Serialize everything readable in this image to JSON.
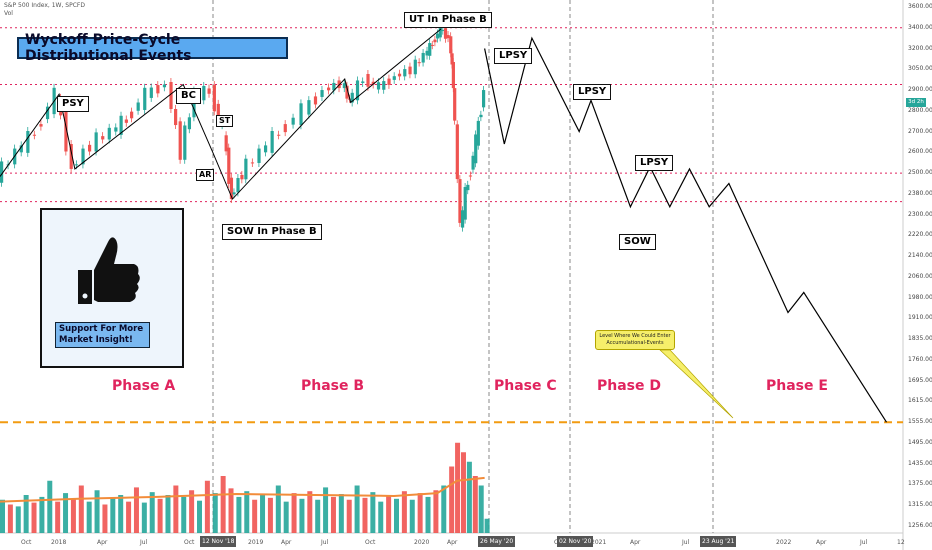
{
  "header": {
    "line1": "S&P 500 Index, 1W, SPCFD",
    "line2": "Vol"
  },
  "chart_data": {
    "type": "candlestick",
    "title": "Wyckoff Price-Cycle Distributional Events",
    "y_axis_ticks": [
      "3600.00",
      "3400.00",
      "3200.00",
      "3050.00",
      "2900.00",
      "2800.00",
      "2700.00",
      "2600.00",
      "2500.00",
      "2380.00",
      "2300.00",
      "2220.00",
      "2140.00",
      "2060.00",
      "1980.00",
      "1910.00",
      "1835.00",
      "1760.00",
      "1695.00",
      "1615.00",
      "1555.00",
      "1495.00",
      "1435.00",
      "1375.00",
      "1315.00",
      "1256.00"
    ],
    "ylim": [
      1256,
      3600
    ],
    "x_axis_ticks": [
      "Oct",
      "2018",
      "Apr",
      "Jul",
      "Oct",
      "2019",
      "Apr",
      "Jul",
      "Oct",
      "2020",
      "Apr",
      "Jul",
      "Oct",
      "2021",
      "Apr",
      "Jul",
      "Oct",
      "2022",
      "Apr",
      "Jul",
      "12"
    ],
    "x_markers": [
      "12 Nov '18",
      "26 May '20",
      "02 Nov '20",
      "23 Aug '21"
    ],
    "current_price_tag": "3d 2h",
    "horizontal_levels": [
      3400,
      2940,
      2500,
      2350,
      1555
    ],
    "annotations": [
      "PSY",
      "BC",
      "AR",
      "ST",
      "SOW In Phase B",
      "UT In Phase B",
      "LPSY",
      "LPSY",
      "LPSY",
      "SOW"
    ],
    "phases": [
      "Phase A",
      "Phase B",
      "Phase C",
      "Phase D",
      "Phase E"
    ],
    "note": "Level Where We Could Enter Accumulational-Events",
    "support_text": [
      "Support For More",
      "Market Insight!"
    ],
    "price_path": [
      [
        0,
        2480
      ],
      [
        10,
        2600
      ],
      [
        20,
        2700
      ],
      [
        30,
        2880
      ],
      [
        38,
        2520
      ],
      [
        48,
        2640
      ],
      [
        58,
        2700
      ],
      [
        66,
        2760
      ],
      [
        76,
        2880
      ],
      [
        86,
        2940
      ],
      [
        93,
        2600
      ],
      [
        100,
        2880
      ],
      [
        108,
        2900
      ],
      [
        114,
        2700
      ],
      [
        118,
        2360
      ],
      [
        124,
        2500
      ],
      [
        134,
        2600
      ],
      [
        144,
        2700
      ],
      [
        156,
        2800
      ],
      [
        166,
        2900
      ],
      [
        174,
        2950
      ],
      [
        178,
        2840
      ],
      [
        186,
        2980
      ],
      [
        194,
        2920
      ],
      [
        202,
        3000
      ],
      [
        210,
        3050
      ],
      [
        216,
        3150
      ],
      [
        220,
        3250
      ],
      [
        224,
        3390
      ],
      [
        228,
        3300
      ],
      [
        230,
        2950
      ],
      [
        234,
        2250
      ],
      [
        238,
        2450
      ],
      [
        242,
        2650
      ],
      [
        246,
        2900
      ]
    ],
    "projection_path": [
      [
        246,
        3200
      ],
      [
        256,
        2640
      ],
      [
        270,
        3300
      ],
      [
        294,
        2700
      ],
      [
        300,
        2850
      ],
      [
        320,
        2330
      ],
      [
        330,
        2530
      ],
      [
        340,
        2330
      ],
      [
        350,
        2520
      ],
      [
        360,
        2330
      ],
      [
        370,
        2440
      ],
      [
        400,
        1930
      ],
      [
        408,
        2000
      ],
      [
        450,
        1555
      ]
    ],
    "volume": {
      "bars": [
        [
          0,
          0.35,
          "g"
        ],
        [
          4,
          0.3,
          "r"
        ],
        [
          8,
          0.28,
          "g"
        ],
        [
          12,
          0.4,
          "g"
        ],
        [
          16,
          0.32,
          "r"
        ],
        [
          20,
          0.38,
          "g"
        ],
        [
          24,
          0.55,
          "g"
        ],
        [
          28,
          0.33,
          "r"
        ],
        [
          32,
          0.42,
          "g"
        ],
        [
          36,
          0.36,
          "r"
        ],
        [
          40,
          0.5,
          "r"
        ],
        [
          44,
          0.33,
          "g"
        ],
        [
          48,
          0.45,
          "g"
        ],
        [
          52,
          0.3,
          "r"
        ],
        [
          56,
          0.37,
          "g"
        ],
        [
          60,
          0.4,
          "g"
        ],
        [
          64,
          0.33,
          "r"
        ],
        [
          68,
          0.48,
          "r"
        ],
        [
          72,
          0.32,
          "g"
        ],
        [
          76,
          0.43,
          "g"
        ],
        [
          80,
          0.36,
          "r"
        ],
        [
          84,
          0.4,
          "g"
        ],
        [
          88,
          0.5,
          "r"
        ],
        [
          92,
          0.38,
          "g"
        ],
        [
          96,
          0.45,
          "r"
        ],
        [
          100,
          0.34,
          "g"
        ],
        [
          104,
          0.55,
          "r"
        ],
        [
          108,
          0.42,
          "g"
        ],
        [
          112,
          0.6,
          "r"
        ],
        [
          116,
          0.47,
          "r"
        ],
        [
          120,
          0.38,
          "g"
        ],
        [
          124,
          0.44,
          "g"
        ],
        [
          128,
          0.35,
          "r"
        ],
        [
          132,
          0.4,
          "g"
        ],
        [
          136,
          0.37,
          "r"
        ],
        [
          140,
          0.5,
          "g"
        ],
        [
          144,
          0.33,
          "g"
        ],
        [
          148,
          0.42,
          "r"
        ],
        [
          152,
          0.36,
          "g"
        ],
        [
          156,
          0.44,
          "r"
        ],
        [
          160,
          0.35,
          "g"
        ],
        [
          164,
          0.48,
          "g"
        ],
        [
          168,
          0.38,
          "r"
        ],
        [
          172,
          0.41,
          "g"
        ],
        [
          176,
          0.35,
          "r"
        ],
        [
          180,
          0.5,
          "g"
        ],
        [
          184,
          0.37,
          "r"
        ],
        [
          188,
          0.43,
          "g"
        ],
        [
          192,
          0.33,
          "g"
        ],
        [
          196,
          0.4,
          "r"
        ],
        [
          200,
          0.36,
          "g"
        ],
        [
          204,
          0.44,
          "r"
        ],
        [
          208,
          0.35,
          "g"
        ],
        [
          212,
          0.42,
          "r"
        ],
        [
          216,
          0.38,
          "g"
        ],
        [
          220,
          0.45,
          "r"
        ],
        [
          224,
          0.5,
          "g"
        ],
        [
          228,
          0.7,
          "r"
        ],
        [
          231,
          0.95,
          "r"
        ],
        [
          234,
          0.85,
          "r"
        ],
        [
          237,
          0.75,
          "g"
        ],
        [
          240,
          0.6,
          "r"
        ],
        [
          243,
          0.5,
          "g"
        ],
        [
          246,
          0.15,
          "g"
        ]
      ],
      "ma": [
        [
          0,
          0.33
        ],
        [
          40,
          0.36
        ],
        [
          80,
          0.38
        ],
        [
          120,
          0.41
        ],
        [
          160,
          0.4
        ],
        [
          200,
          0.39
        ],
        [
          222,
          0.42
        ],
        [
          232,
          0.55
        ],
        [
          246,
          0.58
        ]
      ]
    }
  }
}
